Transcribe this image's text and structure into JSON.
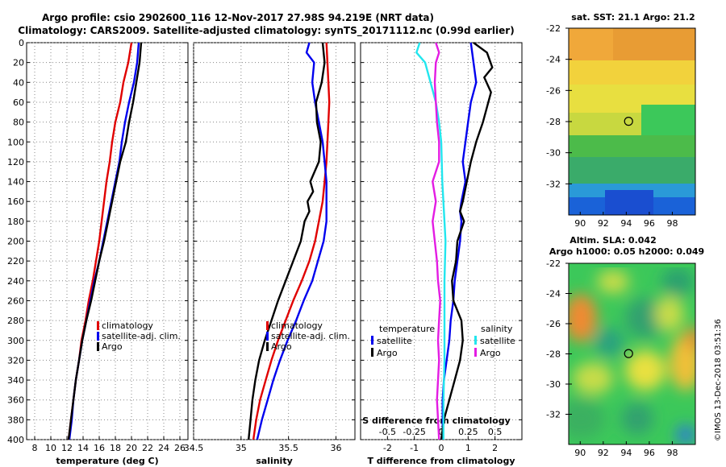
{
  "title": {
    "line1": "Argo profile: csio 2902600_116 12-Nov-2017 27.98S 94.219E (NRT data)",
    "line2": "Climatology: CARS2009. Satellite-adjusted climatology: synTS_20171112.nc (0.99d earlier)"
  },
  "side_label": "©IMOS 13-Dec-2018 03:51:36",
  "colors": {
    "red": "#e00000",
    "blue": "#0000ee",
    "black": "#000000",
    "cyan": "#22e6ee",
    "magenta": "#e31ce3"
  },
  "chart_data": [
    {
      "type": "line",
      "name": "temperature",
      "xlabel": "temperature (deg C)",
      "ylabel": "",
      "xlim": [
        7,
        27
      ],
      "ylim": [
        400,
        0
      ],
      "xticks": [
        8,
        10,
        12,
        14,
        16,
        18,
        20,
        22,
        24,
        26
      ],
      "yticks": [
        0,
        20,
        40,
        60,
        80,
        100,
        120,
        140,
        160,
        180,
        200,
        220,
        240,
        260,
        280,
        300,
        320,
        340,
        360,
        380,
        400
      ],
      "grid": true,
      "legend": [
        "climatology",
        "satellite-adj. clim.",
        "Argo"
      ],
      "legend_position": "bottom-right",
      "series": [
        {
          "name": "climatology",
          "color": "red",
          "points": [
            [
              20.0,
              0
            ],
            [
              19.6,
              20
            ],
            [
              19.0,
              40
            ],
            [
              18.6,
              60
            ],
            [
              18.0,
              80
            ],
            [
              17.6,
              100
            ],
            [
              17.3,
              120
            ],
            [
              16.9,
              140
            ],
            [
              16.6,
              160
            ],
            [
              16.3,
              180
            ],
            [
              16.0,
              200
            ],
            [
              15.6,
              220
            ],
            [
              15.2,
              240
            ],
            [
              14.7,
              260
            ],
            [
              14.3,
              280
            ],
            [
              13.8,
              300
            ],
            [
              13.5,
              320
            ],
            [
              13.1,
              340
            ],
            [
              12.8,
              360
            ],
            [
              12.5,
              380
            ],
            [
              12.2,
              400
            ]
          ]
        },
        {
          "name": "satellite-adj. clim.",
          "color": "blue",
          "points": [
            [
              20.9,
              0
            ],
            [
              20.7,
              20
            ],
            [
              20.3,
              40
            ],
            [
              19.7,
              60
            ],
            [
              19.2,
              80
            ],
            [
              18.8,
              100
            ],
            [
              18.5,
              120
            ],
            [
              18.0,
              140
            ],
            [
              17.5,
              160
            ],
            [
              17.0,
              180
            ],
            [
              16.5,
              200
            ],
            [
              16.0,
              220
            ],
            [
              15.4,
              240
            ],
            [
              14.9,
              260
            ],
            [
              14.4,
              280
            ],
            [
              13.9,
              300
            ],
            [
              13.5,
              320
            ],
            [
              13.1,
              340
            ],
            [
              12.8,
              360
            ],
            [
              12.6,
              380
            ],
            [
              12.3,
              400
            ]
          ]
        },
        {
          "name": "Argo",
          "color": "black",
          "points": [
            [
              21.2,
              0
            ],
            [
              21.0,
              20
            ],
            [
              20.6,
              40
            ],
            [
              20.2,
              60
            ],
            [
              19.7,
              80
            ],
            [
              19.3,
              100
            ],
            [
              18.6,
              120
            ],
            [
              18.1,
              140
            ],
            [
              17.6,
              160
            ],
            [
              17.1,
              180
            ],
            [
              16.6,
              200
            ],
            [
              16.0,
              220
            ],
            [
              15.5,
              240
            ],
            [
              15.0,
              260
            ],
            [
              14.4,
              280
            ],
            [
              13.9,
              300
            ],
            [
              13.5,
              320
            ],
            [
              13.1,
              340
            ],
            [
              12.8,
              360
            ],
            [
              12.5,
              380
            ],
            [
              12.2,
              400
            ]
          ]
        }
      ]
    },
    {
      "type": "line",
      "name": "salinity",
      "xlabel": "salinity",
      "xlim": [
        34.5,
        36.2
      ],
      "ylim": [
        400,
        0
      ],
      "xticks": [
        34.5,
        35,
        35.5,
        36
      ],
      "grid": true,
      "legend": [
        "climatology",
        "satellite-adj. clim.",
        "Argo"
      ],
      "legend_position": "bottom-right",
      "series": [
        {
          "name": "climatology",
          "color": "red",
          "points": [
            [
              35.9,
              0
            ],
            [
              35.91,
              20
            ],
            [
              35.92,
              40
            ],
            [
              35.93,
              60
            ],
            [
              35.92,
              80
            ],
            [
              35.91,
              100
            ],
            [
              35.9,
              120
            ],
            [
              35.88,
              140
            ],
            [
              35.86,
              160
            ],
            [
              35.82,
              180
            ],
            [
              35.78,
              200
            ],
            [
              35.72,
              220
            ],
            [
              35.64,
              240
            ],
            [
              35.55,
              260
            ],
            [
              35.47,
              280
            ],
            [
              35.39,
              300
            ],
            [
              35.32,
              320
            ],
            [
              35.26,
              340
            ],
            [
              35.2,
              360
            ],
            [
              35.16,
              380
            ],
            [
              35.13,
              400
            ]
          ]
        },
        {
          "name": "satellite-adj. clim.",
          "color": "blue",
          "points": [
            [
              35.72,
              0
            ],
            [
              35.69,
              10
            ],
            [
              35.77,
              20
            ],
            [
              35.75,
              40
            ],
            [
              35.78,
              60
            ],
            [
              35.82,
              80
            ],
            [
              35.86,
              100
            ],
            [
              35.88,
              120
            ],
            [
              35.9,
              140
            ],
            [
              35.9,
              160
            ],
            [
              35.9,
              180
            ],
            [
              35.87,
              200
            ],
            [
              35.81,
              220
            ],
            [
              35.75,
              240
            ],
            [
              35.66,
              260
            ],
            [
              35.58,
              280
            ],
            [
              35.49,
              300
            ],
            [
              35.41,
              320
            ],
            [
              35.34,
              340
            ],
            [
              35.28,
              360
            ],
            [
              35.22,
              380
            ],
            [
              35.17,
              400
            ]
          ]
        },
        {
          "name": "Argo",
          "color": "black",
          "points": [
            [
              35.86,
              0
            ],
            [
              35.88,
              20
            ],
            [
              35.85,
              40
            ],
            [
              35.79,
              60
            ],
            [
              35.8,
              80
            ],
            [
              35.84,
              100
            ],
            [
              35.82,
              120
            ],
            [
              35.73,
              140
            ],
            [
              35.76,
              150
            ],
            [
              35.7,
              160
            ],
            [
              35.72,
              170
            ],
            [
              35.67,
              180
            ],
            [
              35.63,
              200
            ],
            [
              35.55,
              220
            ],
            [
              35.47,
              240
            ],
            [
              35.39,
              260
            ],
            [
              35.32,
              280
            ],
            [
              35.25,
              300
            ],
            [
              35.19,
              320
            ],
            [
              35.15,
              340
            ],
            [
              35.12,
              360
            ],
            [
              35.1,
              380
            ],
            [
              35.08,
              400
            ]
          ]
        }
      ]
    },
    {
      "type": "line",
      "name": "difference from climatology",
      "xlabel": "T difference from climatology",
      "xlabel_top": "S difference from climatology",
      "xlim": [
        -3,
        3
      ],
      "xlim_top": [
        -0.75,
        0.75
      ],
      "ylim": [
        400,
        0
      ],
      "xticks": [
        -2,
        -1,
        0,
        1,
        2
      ],
      "xticks_top": [
        -0.5,
        -0.25,
        0,
        0.25,
        0.5
      ],
      "xticklabels_top": [
        "-0.5",
        "-0.25",
        "0",
        "0.25",
        "0.5"
      ],
      "grid": true,
      "legend_temperature": {
        "title": "temperature",
        "items": [
          "satellite",
          "Argo"
        ]
      },
      "legend_salinity": {
        "title": "salinity",
        "items": [
          "satellite",
          "Argo"
        ]
      },
      "series": [
        {
          "name": "temperature satellite",
          "color": "blue",
          "axis": "T",
          "points": [
            [
              1.1,
              0
            ],
            [
              1.2,
              20
            ],
            [
              1.3,
              40
            ],
            [
              1.1,
              60
            ],
            [
              1.0,
              80
            ],
            [
              0.9,
              100
            ],
            [
              0.8,
              120
            ],
            [
              0.9,
              140
            ],
            [
              0.75,
              160
            ],
            [
              0.7,
              170
            ],
            [
              0.75,
              180
            ],
            [
              0.7,
              200
            ],
            [
              0.6,
              220
            ],
            [
              0.5,
              240
            ],
            [
              0.45,
              260
            ],
            [
              0.35,
              280
            ],
            [
              0.3,
              300
            ],
            [
              0.2,
              320
            ],
            [
              0.1,
              340
            ],
            [
              0.05,
              360
            ],
            [
              0.05,
              380
            ],
            [
              0.05,
              400
            ]
          ]
        },
        {
          "name": "temperature Argo",
          "color": "black",
          "axis": "T",
          "points": [
            [
              1.2,
              0
            ],
            [
              1.7,
              10
            ],
            [
              1.9,
              25
            ],
            [
              1.6,
              35
            ],
            [
              1.85,
              50
            ],
            [
              1.7,
              65
            ],
            [
              1.55,
              80
            ],
            [
              1.3,
              100
            ],
            [
              1.1,
              120
            ],
            [
              0.95,
              140
            ],
            [
              0.8,
              160
            ],
            [
              0.7,
              170
            ],
            [
              0.85,
              180
            ],
            [
              0.6,
              200
            ],
            [
              0.55,
              220
            ],
            [
              0.4,
              240
            ],
            [
              0.45,
              260
            ],
            [
              0.75,
              280
            ],
            [
              0.8,
              300
            ],
            [
              0.7,
              320
            ],
            [
              0.5,
              340
            ],
            [
              0.3,
              360
            ],
            [
              0.1,
              380
            ],
            [
              0.0,
              400
            ]
          ]
        },
        {
          "name": "salinity satellite",
          "color": "cyan",
          "axis": "S",
          "points": [
            [
              -0.2,
              0
            ],
            [
              -0.23,
              10
            ],
            [
              -0.15,
              20
            ],
            [
              -0.1,
              40
            ],
            [
              -0.05,
              60
            ],
            [
              -0.02,
              80
            ],
            [
              0.0,
              100
            ],
            [
              0.01,
              140
            ],
            [
              0.03,
              180
            ],
            [
              0.04,
              200
            ],
            [
              0.03,
              240
            ],
            [
              0.03,
              280
            ],
            [
              0.03,
              320
            ],
            [
              0.02,
              360
            ],
            [
              0.02,
              400
            ]
          ]
        },
        {
          "name": "salinity Argo",
          "color": "magenta",
          "axis": "S",
          "points": [
            [
              -0.05,
              0
            ],
            [
              -0.02,
              10
            ],
            [
              -0.05,
              20
            ],
            [
              -0.06,
              40
            ],
            [
              -0.05,
              60
            ],
            [
              -0.04,
              80
            ],
            [
              -0.02,
              100
            ],
            [
              -0.02,
              120
            ],
            [
              -0.08,
              140
            ],
            [
              -0.05,
              160
            ],
            [
              -0.08,
              180
            ],
            [
              -0.06,
              200
            ],
            [
              -0.04,
              220
            ],
            [
              -0.03,
              240
            ],
            [
              -0.01,
              260
            ],
            [
              -0.02,
              280
            ],
            [
              -0.03,
              300
            ],
            [
              -0.02,
              320
            ],
            [
              -0.03,
              340
            ],
            [
              -0.04,
              360
            ],
            [
              -0.03,
              380
            ],
            [
              -0.02,
              400
            ]
          ]
        }
      ]
    },
    {
      "type": "heatmap",
      "name": "sst map",
      "title": "sat. SST: 21.1 Argo: 21.2",
      "xlim": [
        89,
        100
      ],
      "ylim": [
        -34,
        -22
      ],
      "xticks": [
        90,
        92,
        94,
        96,
        98
      ],
      "yticks": [
        -22,
        -24,
        -26,
        -28,
        -30,
        -32
      ],
      "yticklabels": [
        "-22",
        "-24",
        "-26",
        "-28",
        "-30",
        "-32"
      ],
      "marker": [
        94.2,
        -27.98
      ]
    },
    {
      "type": "heatmap",
      "name": "sla map",
      "title": "Altim. SLA: 0.042",
      "subtitle": "Argo h1000: 0.05 h2000: 0.049",
      "xlim": [
        89,
        100
      ],
      "ylim": [
        -34,
        -22
      ],
      "xticks": [
        90,
        92,
        94,
        96,
        98
      ],
      "yticks": [
        -22,
        -24,
        -26,
        -28,
        -30,
        -32
      ],
      "yticklabels": [
        "-22",
        "-24",
        "-26",
        "-28",
        "-30",
        "-32"
      ],
      "marker": [
        94.2,
        -27.98
      ]
    }
  ]
}
